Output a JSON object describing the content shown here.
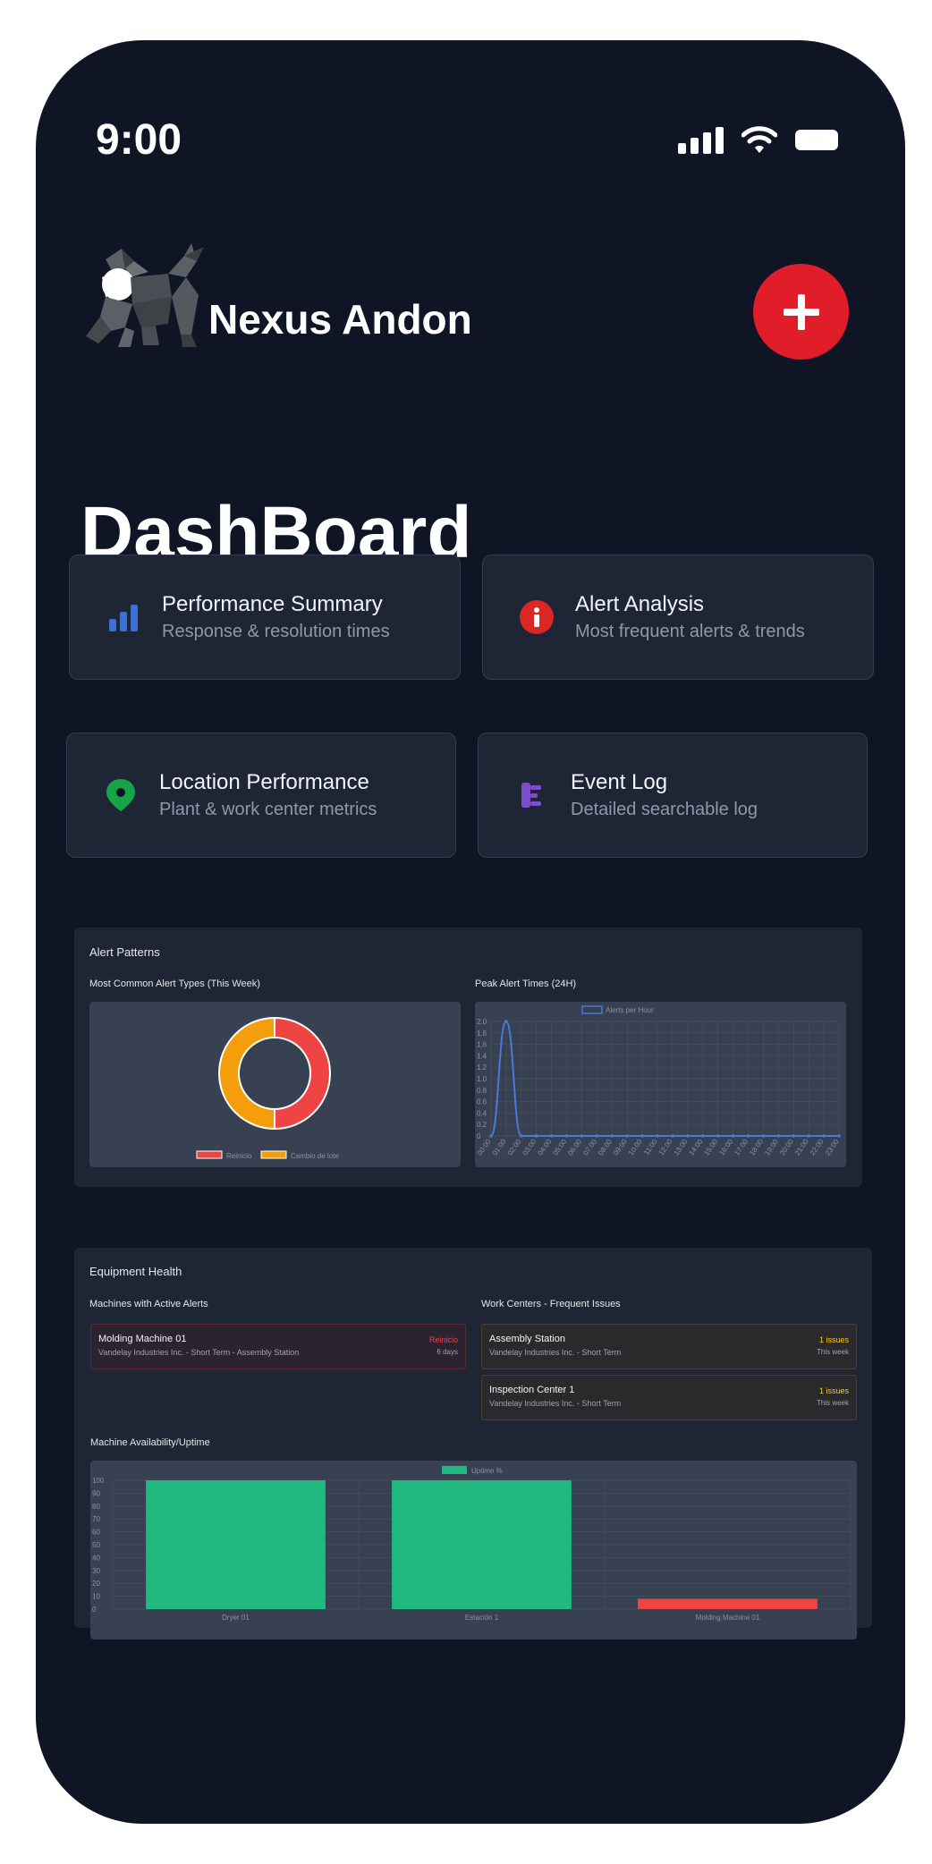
{
  "status_bar": {
    "time": "9:00"
  },
  "header": {
    "brand": "Nexus Andon",
    "add_label": "+"
  },
  "page_title": "DashBoard",
  "cards": [
    {
      "title": "Performance Summary",
      "subtitle": "Response & resolution times",
      "icon": "bar-chart-icon",
      "color": "#3b6fd6"
    },
    {
      "title": "Alert Analysis",
      "subtitle": "Most frequent alerts & trends",
      "icon": "info-icon",
      "color": "#dc2626"
    },
    {
      "title": "Location Performance",
      "subtitle": "Plant & work center metrics",
      "icon": "location-pin-icon",
      "color": "#16a34a"
    },
    {
      "title": "Event Log",
      "subtitle": "Detailed searchable log",
      "icon": "log-icon",
      "color": "#7c4dcc"
    }
  ],
  "alert_patterns": {
    "title": "Alert Patterns",
    "donut_title": "Most Common Alert Types (This Week)",
    "line_title": "Peak Alert Times (24H)"
  },
  "equipment_health": {
    "title": "Equipment Health",
    "machines_title": "Machines with Active Alerts",
    "workcenters_title": "Work Centers - Frequent Issues",
    "uptime_title": "Machine Availability/Uptime",
    "machines": [
      {
        "name": "Molding Machine 01",
        "detail": "Vandelay Industries Inc. - Short Term - Assembly Station",
        "badge": "Reinicio",
        "meta": "6 days"
      }
    ],
    "workcenters": [
      {
        "name": "Assembly Station",
        "detail": "Vandelay Industries Inc. - Short Term",
        "badge": "1 issues",
        "meta": "This week"
      },
      {
        "name": "Inspection Center 1",
        "detail": "Vandelay Industries Inc. - Short Term",
        "badge": "1 issues",
        "meta": "This week"
      }
    ]
  },
  "colors": {
    "red": "#ef4444",
    "orange": "#f59e0b",
    "blue": "#4a79d8",
    "green": "#20b97f",
    "yellow": "#facc15"
  },
  "chart_data": [
    {
      "type": "pie",
      "title": "Most Common Alert Types (This Week)",
      "categories": [
        "Reinicio",
        "Cambio de lote"
      ],
      "values": [
        1,
        1
      ],
      "colors": [
        "#ef4444",
        "#f59e0b"
      ],
      "legend": "bottom"
    },
    {
      "type": "line",
      "title": "Peak Alert Times (24H)",
      "series": [
        {
          "name": "Alerts per Hour",
          "values": [
            0,
            2,
            0,
            0,
            0,
            0,
            0,
            0,
            0,
            0,
            0,
            0,
            0,
            0,
            0,
            0,
            0,
            0,
            0,
            0,
            0,
            0,
            0,
            0
          ]
        }
      ],
      "x": [
        "00:00",
        "01:00",
        "02:00",
        "03:00",
        "04:00",
        "05:00",
        "06:00",
        "07:00",
        "08:00",
        "09:00",
        "10:00",
        "11:00",
        "12:00",
        "13:00",
        "14:00",
        "15:00",
        "16:00",
        "17:00",
        "18:00",
        "19:00",
        "20:00",
        "21:00",
        "22:00",
        "23:00"
      ],
      "y_ticks": [
        "2.0",
        "1.8",
        "1.6",
        "1.4",
        "1.2",
        "1.0",
        "0.8",
        "0.6",
        "0.4",
        "0.2",
        "0"
      ],
      "ylim": [
        0,
        2
      ],
      "legend": "top",
      "grid": true
    },
    {
      "type": "bar",
      "title": "Machine Availability/Uptime",
      "categories": [
        "Dryer 01",
        "Estación 1",
        "Molding Machine 01"
      ],
      "series": [
        {
          "name": "Uptime %",
          "values": [
            100,
            100,
            8
          ]
        }
      ],
      "bar_colors": [
        "#20b97f",
        "#20b97f",
        "#ef4444"
      ],
      "y_ticks": [
        "100",
        "90",
        "80",
        "70",
        "60",
        "50",
        "40",
        "30",
        "20",
        "10",
        "0"
      ],
      "ylim": [
        0,
        100
      ],
      "legend": "top",
      "grid": true
    }
  ]
}
